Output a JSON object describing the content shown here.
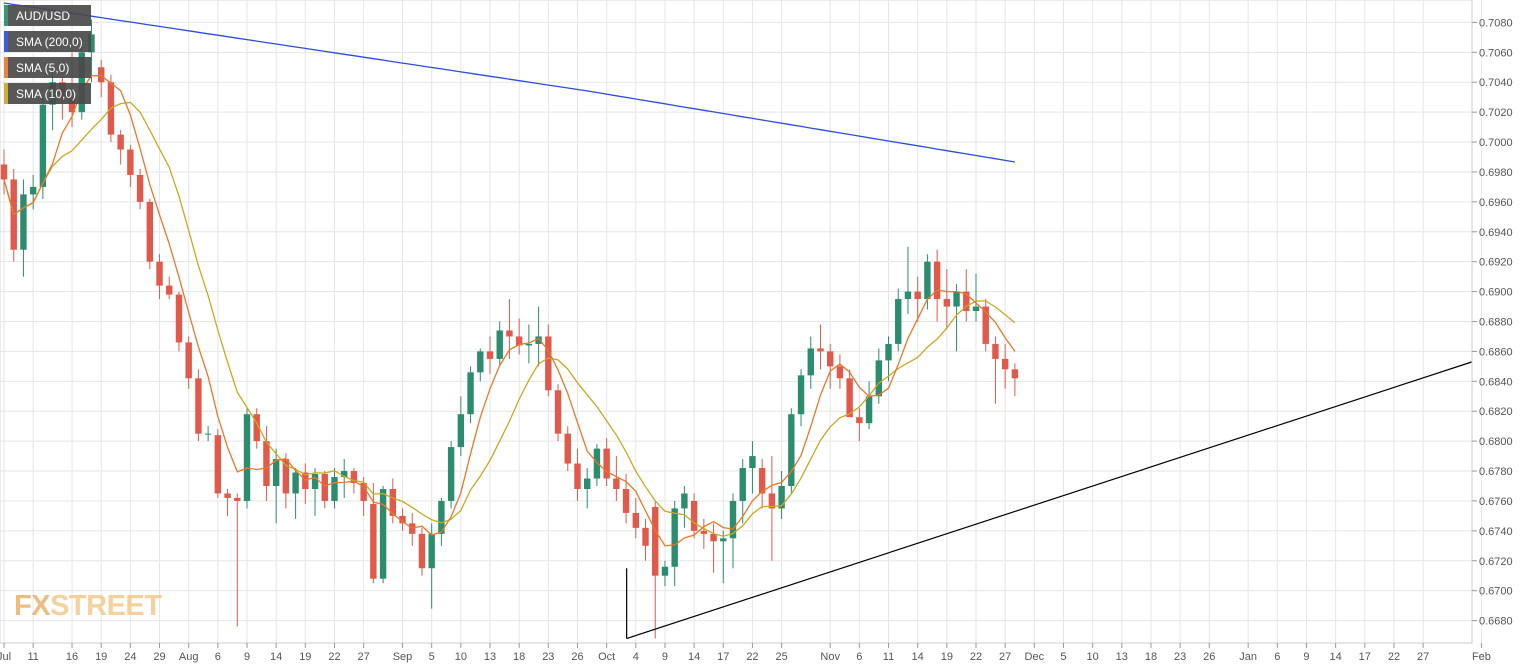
{
  "colors": {
    "up": "#2b8c6e",
    "down": "#e0594a",
    "sma200": "#2e4ce0",
    "sma5": "#e8782a",
    "sma10": "#c9a821",
    "trendline": "#000000",
    "grid": "#e6e6e6"
  },
  "legend": [
    {
      "label": "AUD/USD",
      "color": "#2b8c6e"
    },
    {
      "label": "SMA (200,0)",
      "color": "#2e4ce0"
    },
    {
      "label": "SMA (5,0)",
      "color": "#e8782a"
    },
    {
      "label": "SMA (10,0)",
      "color": "#c9a821"
    }
  ],
  "logo": {
    "fx": "FX",
    "street": "STREET"
  },
  "chart_data": {
    "type": "candlestick",
    "symbol": "AUD/USD",
    "ylim": [
      0.6665,
      0.7095
    ],
    "y_ticks": [
      "0.6680",
      "0.6700",
      "0.6720",
      "0.6740",
      "0.6760",
      "0.6780",
      "0.6800",
      "0.6820",
      "0.6840",
      "0.6860",
      "0.6880",
      "0.6900",
      "0.6920",
      "0.6940",
      "0.6960",
      "0.6980",
      "0.7000",
      "0.7020",
      "0.7040",
      "0.7060",
      "0.7080"
    ],
    "x_ticks": [
      {
        "label": "Jul",
        "i": 0
      },
      {
        "label": "11",
        "i": 3
      },
      {
        "label": "16",
        "i": 7
      },
      {
        "label": "19",
        "i": 10
      },
      {
        "label": "24",
        "i": 13
      },
      {
        "label": "29",
        "i": 16
      },
      {
        "label": "Aug",
        "i": 19
      },
      {
        "label": "6",
        "i": 22
      },
      {
        "label": "9",
        "i": 25
      },
      {
        "label": "14",
        "i": 28
      },
      {
        "label": "19",
        "i": 31
      },
      {
        "label": "22",
        "i": 34
      },
      {
        "label": "27",
        "i": 37
      },
      {
        "label": "Sep",
        "i": 41
      },
      {
        "label": "5",
        "i": 44
      },
      {
        "label": "10",
        "i": 47
      },
      {
        "label": "13",
        "i": 50
      },
      {
        "label": "18",
        "i": 53
      },
      {
        "label": "23",
        "i": 56
      },
      {
        "label": "26",
        "i": 59
      },
      {
        "label": "Oct",
        "i": 62
      },
      {
        "label": "4",
        "i": 65
      },
      {
        "label": "9",
        "i": 68
      },
      {
        "label": "14",
        "i": 71
      },
      {
        "label": "17",
        "i": 74
      },
      {
        "label": "22",
        "i": 77
      },
      {
        "label": "25",
        "i": 80
      },
      {
        "label": "Nov",
        "i": 85
      },
      {
        "label": "6",
        "i": 88
      },
      {
        "label": "11",
        "i": 91
      },
      {
        "label": "14",
        "i": 94
      },
      {
        "label": "19",
        "i": 97
      },
      {
        "label": "22",
        "i": 100
      },
      {
        "label": "27",
        "i": 103
      },
      {
        "label": "Dec",
        "i": 106
      },
      {
        "label": "5",
        "i": 109
      },
      {
        "label": "10",
        "i": 112
      },
      {
        "label": "13",
        "i": 115
      },
      {
        "label": "18",
        "i": 118
      },
      {
        "label": "23",
        "i": 121
      },
      {
        "label": "26",
        "i": 124
      },
      {
        "label": "Jan",
        "i": 128
      },
      {
        "label": "6",
        "i": 131
      },
      {
        "label": "9",
        "i": 134
      },
      {
        "label": "14",
        "i": 137
      },
      {
        "label": "17",
        "i": 140
      },
      {
        "label": "22",
        "i": 143
      },
      {
        "label": "27",
        "i": 146
      },
      {
        "label": "Feb",
        "i": 152
      }
    ],
    "candles": [
      [
        0.6985,
        0.6995,
        0.6965,
        0.6975
      ],
      [
        0.6975,
        0.6982,
        0.692,
        0.6928
      ],
      [
        0.6928,
        0.6975,
        0.691,
        0.6965
      ],
      [
        0.6965,
        0.6978,
        0.6955,
        0.697
      ],
      [
        0.697,
        0.703,
        0.6962,
        0.7025
      ],
      [
        0.7025,
        0.705,
        0.7008,
        0.704
      ],
      [
        0.704,
        0.7055,
        0.7015,
        0.703
      ],
      [
        0.703,
        0.706,
        0.701,
        0.702
      ],
      [
        0.702,
        0.707,
        0.7015,
        0.706
      ],
      [
        0.706,
        0.7082,
        0.704,
        0.7072
      ],
      [
        0.705,
        0.7055,
        0.703,
        0.704
      ],
      [
        0.704,
        0.7045,
        0.7,
        0.7005
      ],
      [
        0.7005,
        0.7008,
        0.6985,
        0.6995
      ],
      [
        0.6995,
        0.6998,
        0.697,
        0.6978
      ],
      [
        0.6978,
        0.6982,
        0.6955,
        0.696
      ],
      [
        0.696,
        0.6962,
        0.6915,
        0.692
      ],
      [
        0.692,
        0.6925,
        0.6895,
        0.6904
      ],
      [
        0.6904,
        0.691,
        0.6895,
        0.6898
      ],
      [
        0.6898,
        0.69,
        0.686,
        0.6866
      ],
      [
        0.6866,
        0.687,
        0.6835,
        0.6842
      ],
      [
        0.6842,
        0.6848,
        0.68,
        0.6805
      ],
      [
        0.6805,
        0.681,
        0.68,
        0.6805
      ],
      [
        0.6804,
        0.6808,
        0.6762,
        0.6765
      ],
      [
        0.6765,
        0.6768,
        0.675,
        0.6762
      ],
      [
        0.6762,
        0.6765,
        0.6676,
        0.676
      ],
      [
        0.676,
        0.6822,
        0.6755,
        0.6818
      ],
      [
        0.6818,
        0.6822,
        0.6795,
        0.68
      ],
      [
        0.68,
        0.681,
        0.676,
        0.677
      ],
      [
        0.677,
        0.6795,
        0.6745,
        0.6788
      ],
      [
        0.6788,
        0.6792,
        0.6755,
        0.6765
      ],
      [
        0.6765,
        0.6782,
        0.6748,
        0.6779
      ],
      [
        0.6779,
        0.6785,
        0.6758,
        0.6768
      ],
      [
        0.6768,
        0.6782,
        0.675,
        0.6778
      ],
      [
        0.6778,
        0.678,
        0.6755,
        0.676
      ],
      [
        0.676,
        0.6782,
        0.6755,
        0.6776
      ],
      [
        0.6776,
        0.6788,
        0.6762,
        0.678
      ],
      [
        0.678,
        0.6782,
        0.6765,
        0.6772
      ],
      [
        0.6772,
        0.6776,
        0.675,
        0.676
      ],
      [
        0.6758,
        0.6772,
        0.6705,
        0.6708
      ],
      [
        0.6708,
        0.677,
        0.6705,
        0.6768
      ],
      [
        0.6768,
        0.6775,
        0.6745,
        0.675
      ],
      [
        0.675,
        0.6755,
        0.674,
        0.6745
      ],
      [
        0.6745,
        0.6752,
        0.673,
        0.6738
      ],
      [
        0.6738,
        0.6742,
        0.671,
        0.6715
      ],
      [
        0.6715,
        0.6745,
        0.6688,
        0.6738
      ],
      [
        0.6738,
        0.6762,
        0.673,
        0.676
      ],
      [
        0.676,
        0.68,
        0.6755,
        0.6796
      ],
      [
        0.6796,
        0.683,
        0.679,
        0.6818
      ],
      [
        0.6818,
        0.685,
        0.6812,
        0.6846
      ],
      [
        0.6846,
        0.6862,
        0.684,
        0.686
      ],
      [
        0.686,
        0.687,
        0.6845,
        0.6855
      ],
      [
        0.6855,
        0.688,
        0.685,
        0.6874
      ],
      [
        0.6874,
        0.6895,
        0.6855,
        0.687
      ],
      [
        0.687,
        0.6882,
        0.6858,
        0.6864
      ],
      [
        0.6864,
        0.6878,
        0.6852,
        0.6865
      ],
      [
        0.6865,
        0.689,
        0.685,
        0.687
      ],
      [
        0.687,
        0.6878,
        0.683,
        0.6834
      ],
      [
        0.6834,
        0.6838,
        0.68,
        0.6805
      ],
      [
        0.6805,
        0.681,
        0.678,
        0.6785
      ],
      [
        0.6785,
        0.6795,
        0.676,
        0.6768
      ],
      [
        0.6768,
        0.6782,
        0.6755,
        0.6775
      ],
      [
        0.6775,
        0.6798,
        0.677,
        0.6795
      ],
      [
        0.6795,
        0.6802,
        0.677,
        0.6775
      ],
      [
        0.6775,
        0.679,
        0.676,
        0.6768
      ],
      [
        0.6768,
        0.6778,
        0.6745,
        0.6752
      ],
      [
        0.6752,
        0.6762,
        0.6735,
        0.6742
      ],
      [
        0.6742,
        0.6748,
        0.672,
        0.673
      ],
      [
        0.6756,
        0.676,
        0.6668,
        0.671
      ],
      [
        0.671,
        0.672,
        0.6703,
        0.6716
      ],
      [
        0.6716,
        0.676,
        0.6703,
        0.6755
      ],
      [
        0.6755,
        0.677,
        0.6742,
        0.6765
      ],
      [
        0.676,
        0.6765,
        0.6735,
        0.674
      ],
      [
        0.674,
        0.6748,
        0.6728,
        0.6738
      ],
      [
        0.6738,
        0.6745,
        0.6712,
        0.6733
      ],
      [
        0.6733,
        0.674,
        0.6705,
        0.6735
      ],
      [
        0.6735,
        0.6765,
        0.6715,
        0.676
      ],
      [
        0.676,
        0.6788,
        0.6745,
        0.6782
      ],
      [
        0.6782,
        0.68,
        0.6765,
        0.679
      ],
      [
        0.6782,
        0.6788,
        0.6755,
        0.6765
      ],
      [
        0.6765,
        0.679,
        0.672,
        0.6755
      ],
      [
        0.6755,
        0.678,
        0.6748,
        0.677
      ],
      [
        0.677,
        0.6822,
        0.6765,
        0.6818
      ],
      [
        0.6818,
        0.6848,
        0.681,
        0.6844
      ],
      [
        0.6844,
        0.687,
        0.6835,
        0.6862
      ],
      [
        0.6862,
        0.6878,
        0.6848,
        0.686
      ],
      [
        0.686,
        0.6865,
        0.6835,
        0.685
      ],
      [
        0.685,
        0.6858,
        0.6835,
        0.6842
      ],
      [
        0.6842,
        0.6848,
        0.682,
        0.6816
      ],
      [
        0.6816,
        0.6822,
        0.68,
        0.6812
      ],
      [
        0.6812,
        0.684,
        0.6808,
        0.683
      ],
      [
        0.683,
        0.6862,
        0.6825,
        0.6854
      ],
      [
        0.6854,
        0.687,
        0.684,
        0.6865
      ],
      [
        0.6865,
        0.6902,
        0.686,
        0.6895
      ],
      [
        0.6895,
        0.693,
        0.6885,
        0.69
      ],
      [
        0.69,
        0.691,
        0.688,
        0.6895
      ],
      [
        0.6895,
        0.6925,
        0.6888,
        0.692
      ],
      [
        0.692,
        0.6928,
        0.688,
        0.6895
      ],
      [
        0.6895,
        0.6915,
        0.6875,
        0.689
      ],
      [
        0.689,
        0.6905,
        0.686,
        0.69
      ],
      [
        0.69,
        0.6915,
        0.688,
        0.6887
      ],
      [
        0.6887,
        0.6912,
        0.688,
        0.689
      ],
      [
        0.689,
        0.6895,
        0.686,
        0.6865
      ],
      [
        0.6865,
        0.687,
        0.6825,
        0.6855
      ],
      [
        0.6855,
        0.6865,
        0.6835,
        0.6848
      ],
      [
        0.6848,
        0.6852,
        0.683,
        0.6842
      ]
    ]
  }
}
